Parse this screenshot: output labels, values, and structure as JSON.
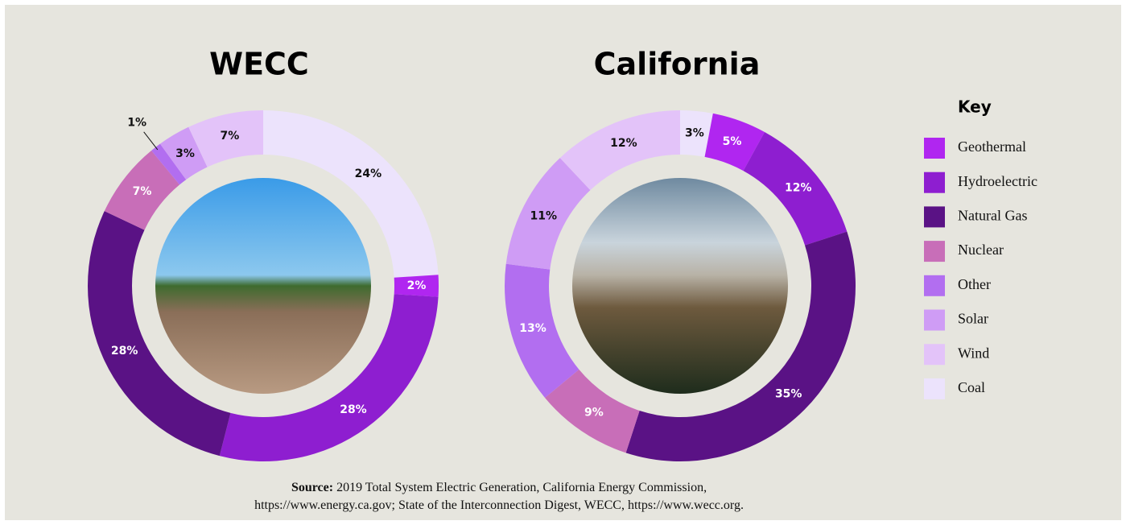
{
  "chart_data": [
    {
      "type": "pie",
      "title": "WECC",
      "categories": [
        "Coal",
        "Geothermal",
        "Hydroelectric",
        "Natural Gas",
        "Nuclear",
        "Other",
        "Solar",
        "Wind"
      ],
      "values": [
        24,
        2,
        28,
        28,
        7,
        1,
        3,
        7
      ],
      "value_labels": [
        "24%",
        "2%",
        "28%",
        "28%",
        "7%",
        "1%",
        "3%",
        "7%"
      ],
      "colors": [
        "#ece3fc",
        "#b026f0",
        "#8e1ed0",
        "#5a1285",
        "#c86eb8",
        "#b26ef0",
        "#cf9cf5",
        "#e3c3f9"
      ]
    },
    {
      "type": "pie",
      "title": "California",
      "categories": [
        "Coal",
        "Geothermal",
        "Hydroelectric",
        "Natural Gas",
        "Nuclear",
        "Other",
        "Solar",
        "Wind"
      ],
      "values": [
        3,
        5,
        12,
        35,
        9,
        13,
        11,
        12
      ],
      "value_labels": [
        "3%",
        "5%",
        "12%",
        "35%",
        "9%",
        "13%",
        "11%",
        "12%"
      ],
      "colors": [
        "#ece3fc",
        "#b026f0",
        "#8e1ed0",
        "#5a1285",
        "#c86eb8",
        "#b26ef0",
        "#cf9cf5",
        "#e3c3f9"
      ]
    }
  ],
  "key": {
    "title": "Key",
    "entries": [
      "Geothermal",
      "Hydroelectric",
      "Natural Gas",
      "Nuclear",
      "Other",
      "Solar",
      "Wind",
      "Coal"
    ]
  },
  "source": {
    "label": "Source:",
    "lines": [
      "2019 Total System Electric Generation, California Energy Commission,",
      "https://www.energy.ca.gov; State of the Interconnection Digest, WECC, https://www.wecc.org."
    ]
  }
}
